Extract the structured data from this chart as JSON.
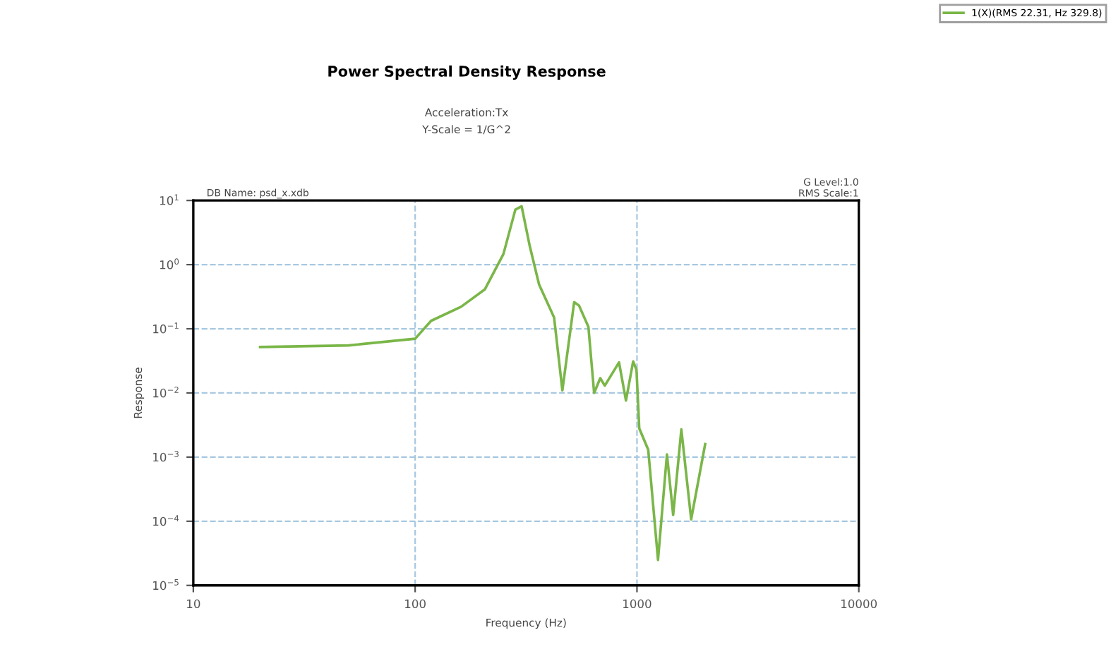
{
  "chart_data": {
    "type": "line",
    "title": "Power Spectral Density Response",
    "subtitle": "Acceleration:Tx\nY-Scale = 1/G^2",
    "xlabel": "Frequency (Hz)",
    "ylabel": "Response",
    "annotations": [
      "DB Name: psd_x.xdb",
      "G Level:1.0\nRMS Scale:1"
    ],
    "log": "xy",
    "grid": true,
    "legend": "top right",
    "marker": "none",
    "line_style": "solid",
    "xlim": [
      10,
      10000
    ],
    "xticks": [
      10,
      100,
      1000,
      10000
    ],
    "ylim": [
      1e-05,
      10
    ],
    "yticks": [
      {
        "value": 10,
        "label": "10$^{1}$"
      },
      {
        "value": 1,
        "label": "10$^{0}$"
      },
      {
        "value": 0.1,
        "label": "10$^{−1}$"
      },
      {
        "value": 0.01,
        "label": "10$^{−2}$"
      },
      {
        "value": 0.001,
        "label": "10$^{−3}$"
      },
      {
        "value": 0.0001,
        "label": "10$^{−4}$"
      },
      {
        "value": 1e-05,
        "label": "10$^{−5}$"
      }
    ],
    "series": [
      {
        "name": "1(X)(RMS 22.31, Hz 329.8)",
        "color": "#7ab648",
        "x": [
          20,
          50,
          100,
          118,
          161,
          206,
          250,
          283,
          302,
          328,
          362,
          423,
          461,
          521,
          548,
          604,
          641,
          683,
          716,
          830,
          892,
          961,
          995,
          1024,
          1124,
          1244,
          1365,
          1456,
          1585,
          1755,
          2030
        ],
        "values": [
          0.052,
          0.055,
          0.07,
          0.133,
          0.22,
          0.41,
          1.46,
          7.2,
          8.1,
          2.0,
          0.49,
          0.15,
          0.011,
          0.26,
          0.23,
          0.107,
          0.01,
          0.017,
          0.013,
          0.03,
          0.0076,
          0.031,
          0.023,
          0.0028,
          0.0013,
          2.5e-05,
          0.0011,
          0.000126,
          0.0027,
          0.000107,
          0.0016
        ]
      }
    ]
  }
}
